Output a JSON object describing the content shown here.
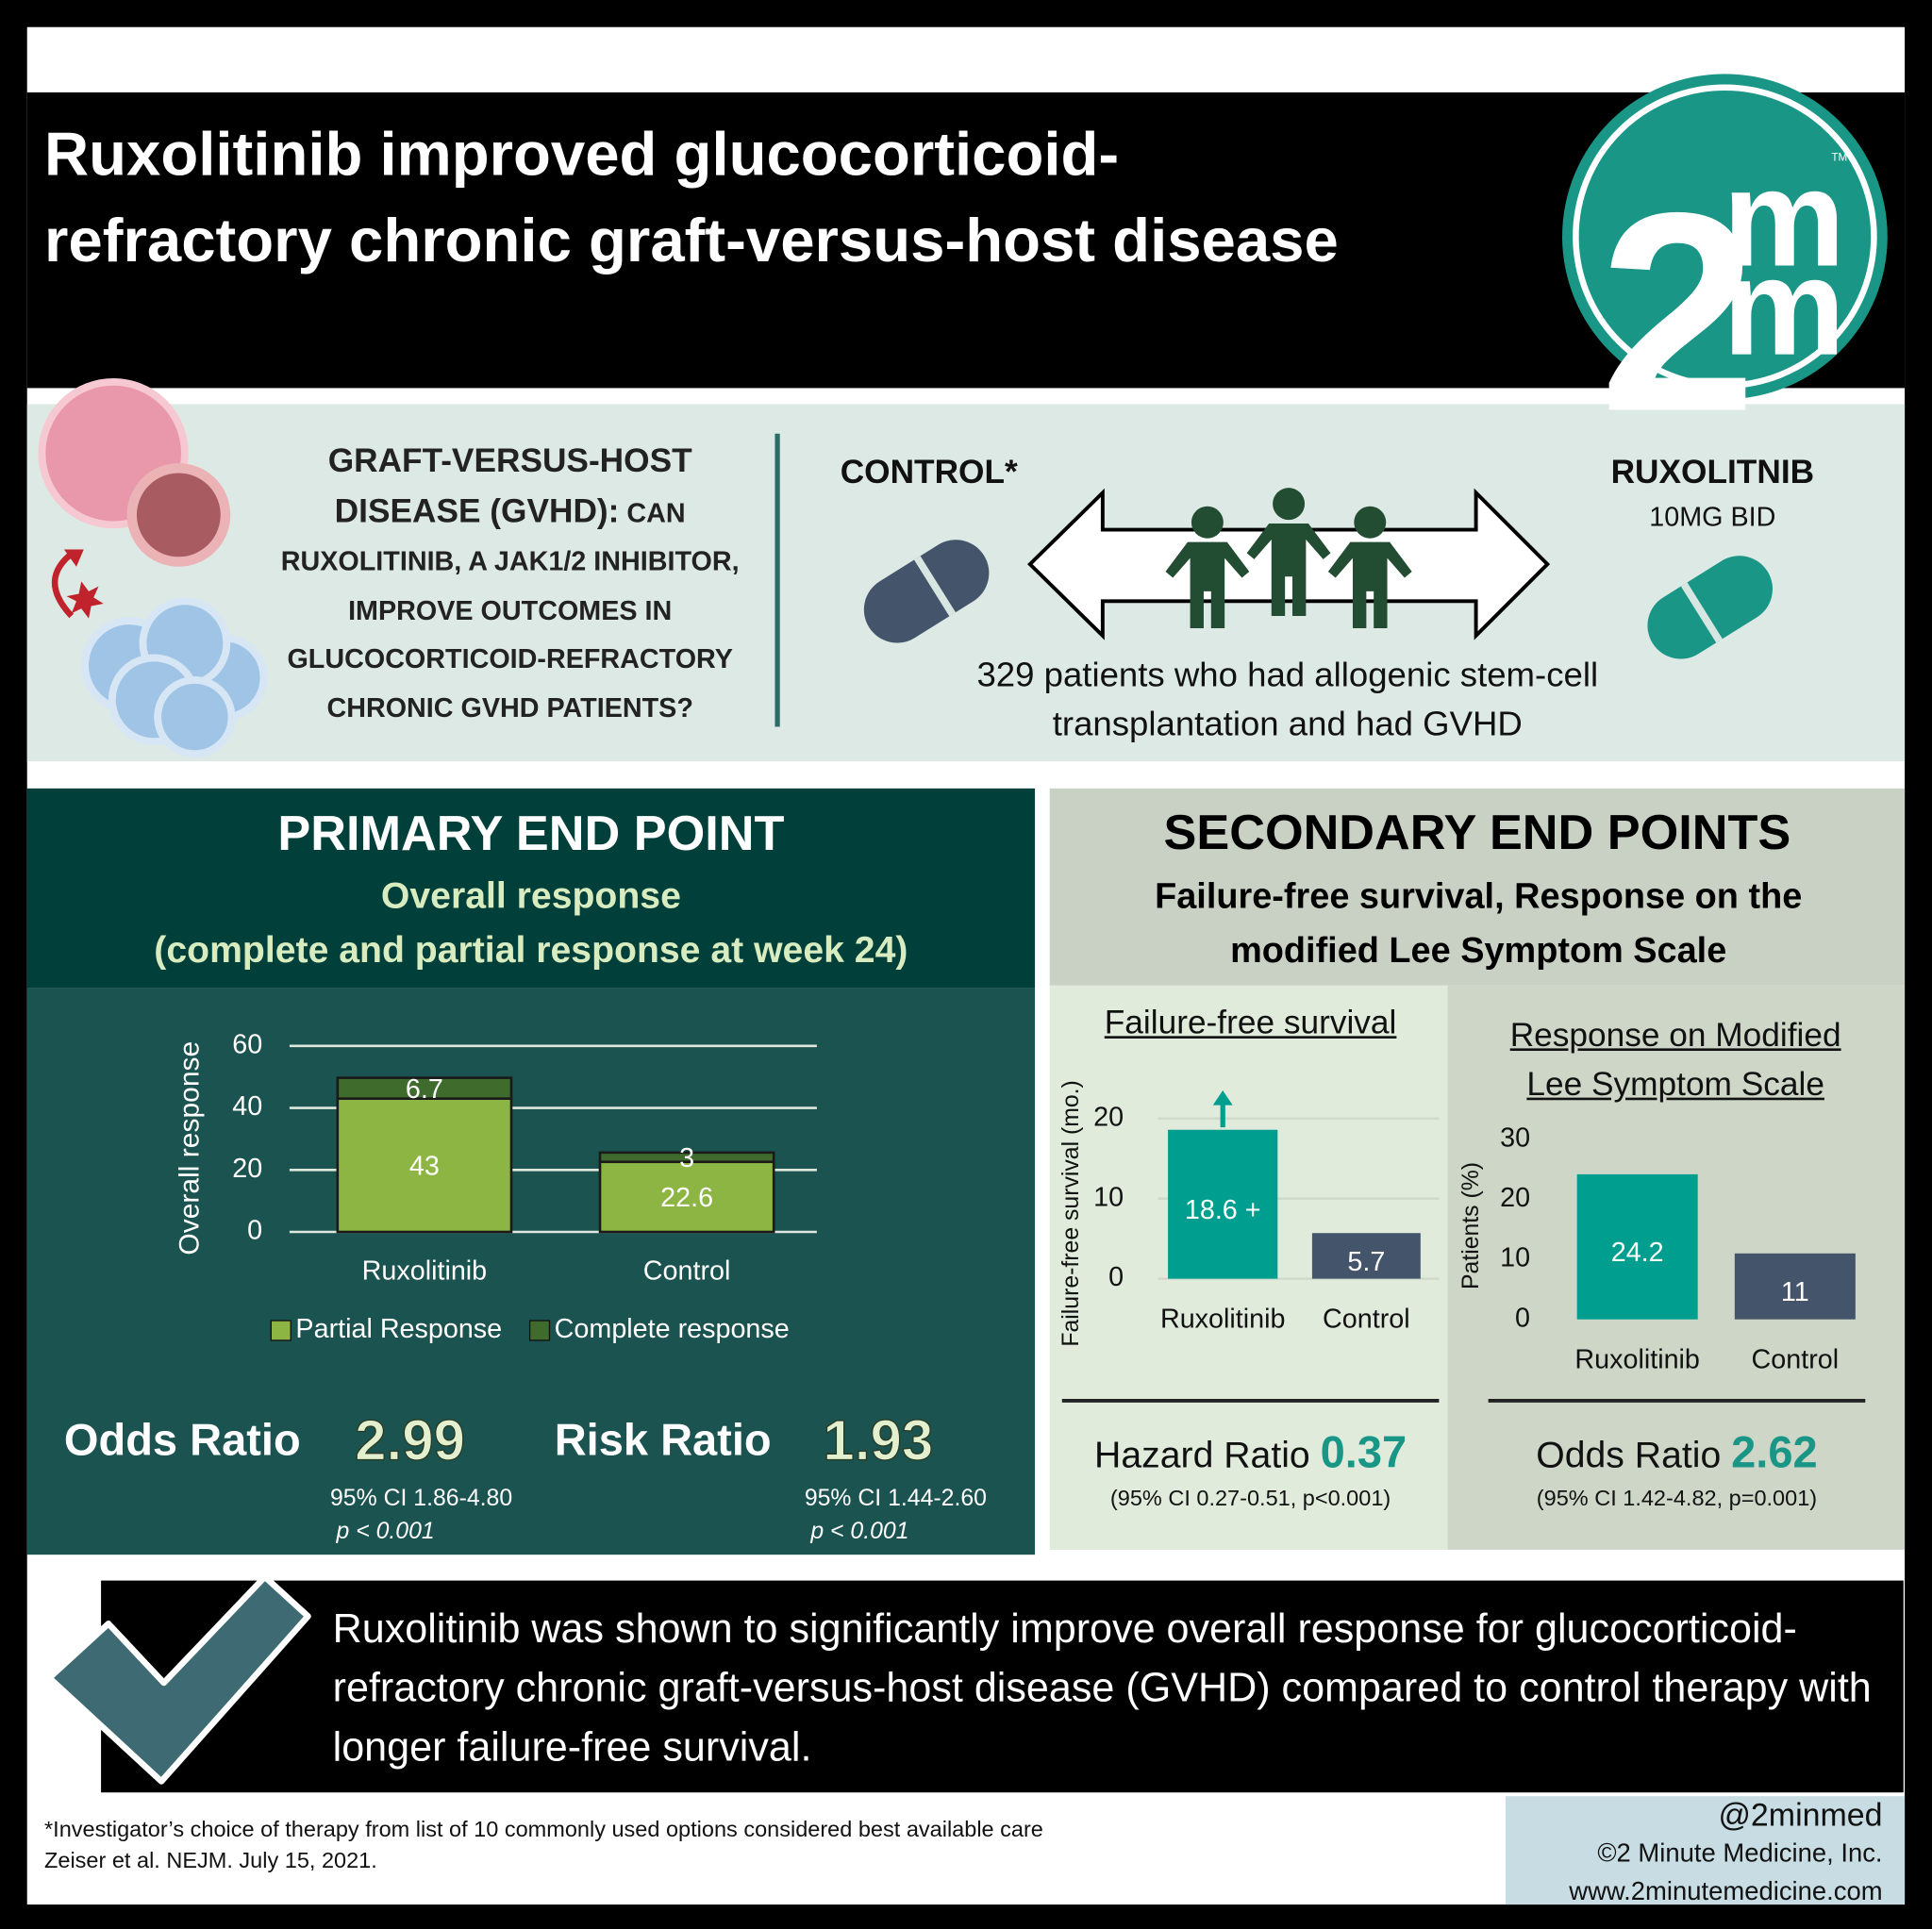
{
  "header": {
    "title": "Ruxolitinib improved glucocorticoid-refractory chronic graft-versus-host disease"
  },
  "logo": {
    "digit": "2",
    "letters": [
      "m",
      "m"
    ],
    "trademark": "TM"
  },
  "question": {
    "heading": "GRAFT-VERSUS-HOST DISEASE (GVHD):",
    "text": "CAN RUXOLITINIB, A JAK1/2 INHIBITOR, IMPROVE OUTCOMES IN GLUCOCORTICOID-REFRACTORY CHRONIC GVHD PATIENTS?"
  },
  "study": {
    "control_label": "CONTROL*",
    "treatment_label": "RUXOLITNIB",
    "dose": "10MG BID",
    "population": "329 patients who had allogenic stem-cell transplantation and had GVHD"
  },
  "primary": {
    "heading": "PRIMARY END POINT",
    "subheading": "Overall response",
    "detail": "(complete and partial response at week 24)",
    "stats": [
      {
        "label": "Odds Ratio",
        "value": "2.99",
        "ci": "95% CI 1.86-4.80",
        "p": "p < 0.001"
      },
      {
        "label": "Risk Ratio",
        "value": "1.93",
        "ci": "95% CI 1.44-2.60",
        "p": "p < 0.001"
      }
    ]
  },
  "secondary": {
    "heading": "SECONDARY END POINTS",
    "subheading": "Failure-free survival, Response on the modified Lee Symptom Scale",
    "stats": [
      {
        "label": "Hazard Ratio",
        "value": "0.37",
        "ci": "(95% CI 0.27-0.51, p<0.001)"
      },
      {
        "label": "Odds Ratio",
        "value": "2.62",
        "ci": "(95% CI 1.42-4.82, p=0.001)"
      }
    ]
  },
  "chart_data": [
    {
      "type": "bar",
      "stacked": true,
      "y_label": "Overall response",
      "categories": [
        "Ruxolitinib",
        "Control"
      ],
      "series": [
        {
          "name": "Partial Response",
          "color": "#8db543",
          "values": [
            43,
            22.6
          ]
        },
        {
          "name": "Complete response",
          "color": "#3f6b2c",
          "values": [
            6.7,
            3
          ]
        }
      ],
      "ylim": [
        0,
        60
      ],
      "yticks": [
        0,
        20,
        40,
        60
      ],
      "grid": true,
      "legend": "bottom"
    },
    {
      "type": "bar",
      "title": "Failure-free survival",
      "y_label": "Failure-free survival (mo.)",
      "categories": [
        "Ruxolitinib",
        "Control"
      ],
      "values": [
        18.6,
        5.7
      ],
      "value_labels": [
        "18.6 +",
        "5.7"
      ],
      "colors": [
        "#009e8e",
        "#44546a"
      ],
      "ylim": [
        0,
        20
      ],
      "yticks": [
        0,
        10,
        20
      ],
      "grid": true
    },
    {
      "type": "bar",
      "title": "Response on Modified Lee Symptom Scale",
      "y_label": "Patients (%)",
      "categories": [
        "Ruxolitinib",
        "Control"
      ],
      "values": [
        24.2,
        11
      ],
      "colors": [
        "#009e8e",
        "#44546a"
      ],
      "ylim": [
        0,
        30
      ],
      "yticks": [
        0,
        10,
        20,
        30
      ],
      "grid": false
    }
  ],
  "conclusion": "Ruxolitinib was shown to significantly improve overall response for glucocorticoid-refractory chronic graft-versus-host disease (GVHD) compared to control therapy with longer failure-free survival.",
  "footer": {
    "footnote": "*Investigator’s choice of therapy from list of 10 commonly used options considered best available care",
    "citation": "Zeiser et al. NEJM. July 15, 2021.",
    "credits": [
      "@2minmed",
      "©2 Minute Medicine, Inc.",
      "www.2minutemedicine.com"
    ]
  }
}
